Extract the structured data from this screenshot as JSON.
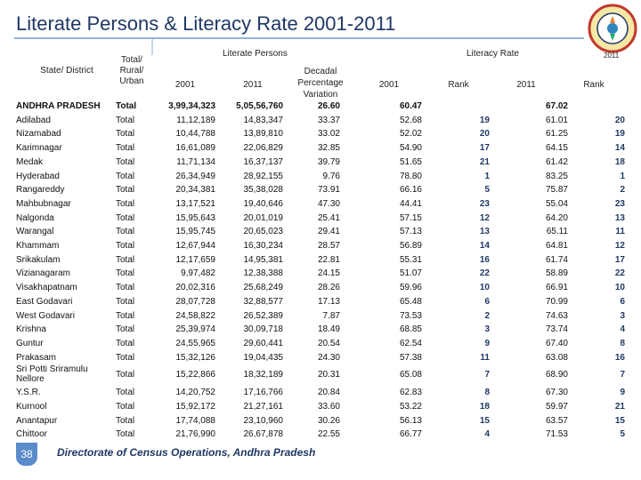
{
  "title": "Literate Persons & Literacy Rate 2001-2011",
  "seal": {
    "year": "2011",
    "colors": {
      "ring": "#c0392b",
      "inner": "#f6e7a6"
    }
  },
  "header": {
    "state": "State/ District",
    "area": [
      "Total/",
      "Rural/",
      "Urban"
    ],
    "literate_persons": "Literate Persons",
    "literacy_rate": "Literacy Rate",
    "lp_2001": "2001",
    "lp_2011": "2011",
    "decadal": [
      "Decadal",
      "Percentage",
      "Variation"
    ],
    "lr_2001": "2001",
    "rank_2001": "Rank",
    "lr_2011": "2011",
    "rank_2011": "Rank"
  },
  "rows": [
    {
      "state": "ANDHRA PRADESH",
      "area": "Total",
      "lp2001": "3,99,34,323",
      "lp2011": "5,05,56,760",
      "dec": "26.60",
      "lr2001": "60.47",
      "rank2001": "",
      "lr2011": "67.02",
      "rank2011": ""
    },
    {
      "state": "Adilabad",
      "area": "Total",
      "lp2001": "11,12,189",
      "lp2011": "14,83,347",
      "dec": "33.37",
      "lr2001": "52.68",
      "rank2001": "19",
      "lr2011": "61.01",
      "rank2011": "20"
    },
    {
      "state": "Nizamabad",
      "area": "Total",
      "lp2001": "10,44,788",
      "lp2011": "13,89,810",
      "dec": "33.02",
      "lr2001": "52.02",
      "rank2001": "20",
      "lr2011": "61.25",
      "rank2011": "19"
    },
    {
      "state": "Karimnagar",
      "area": "Total",
      "lp2001": "16,61,089",
      "lp2011": "22,06,829",
      "dec": "32.85",
      "lr2001": "54.90",
      "rank2001": "17",
      "lr2011": "64.15",
      "rank2011": "14"
    },
    {
      "state": "Medak",
      "area": "Total",
      "lp2001": "11,71,134",
      "lp2011": "16,37,137",
      "dec": "39.79",
      "lr2001": "51.65",
      "rank2001": "21",
      "lr2011": "61.42",
      "rank2011": "18"
    },
    {
      "state": "Hyderabad",
      "area": "Total",
      "lp2001": "26,34,949",
      "lp2011": "28,92,155",
      "dec": "9.76",
      "lr2001": "78.80",
      "rank2001": "1",
      "lr2011": "83.25",
      "rank2011": "1"
    },
    {
      "state": "Rangareddy",
      "area": "Total",
      "lp2001": "20,34,381",
      "lp2011": "35,38,028",
      "dec": "73.91",
      "lr2001": "66.16",
      "rank2001": "5",
      "lr2011": "75.87",
      "rank2011": "2"
    },
    {
      "state": "Mahbubnagar",
      "area": "Total",
      "lp2001": "13,17,521",
      "lp2011": "19,40,646",
      "dec": "47.30",
      "lr2001": "44.41",
      "rank2001": "23",
      "lr2011": "55.04",
      "rank2011": "23"
    },
    {
      "state": "Nalgonda",
      "area": "Total",
      "lp2001": "15,95,643",
      "lp2011": "20,01,019",
      "dec": "25.41",
      "lr2001": "57.15",
      "rank2001": "12",
      "lr2011": "64.20",
      "rank2011": "13"
    },
    {
      "state": "Warangal",
      "area": "Total",
      "lp2001": "15,95,745",
      "lp2011": "20,65,023",
      "dec": "29.41",
      "lr2001": "57.13",
      "rank2001": "13",
      "lr2011": "65.11",
      "rank2011": "11"
    },
    {
      "state": "Khammam",
      "area": "Total",
      "lp2001": "12,67,944",
      "lp2011": "16,30,234",
      "dec": "28.57",
      "lr2001": "56.89",
      "rank2001": "14",
      "lr2011": "64.81",
      "rank2011": "12"
    },
    {
      "state": "Srikakulam",
      "area": "Total",
      "lp2001": "12,17,659",
      "lp2011": "14,95,381",
      "dec": "22.81",
      "lr2001": "55.31",
      "rank2001": "16",
      "lr2011": "61.74",
      "rank2011": "17"
    },
    {
      "state": "Vizianagaram",
      "area": "Total",
      "lp2001": "9,97,482",
      "lp2011": "12,38,388",
      "dec": "24.15",
      "lr2001": "51.07",
      "rank2001": "22",
      "lr2011": "58.89",
      "rank2011": "22"
    },
    {
      "state": "Visakhapatnam",
      "area": "Total",
      "lp2001": "20,02,316",
      "lp2011": "25,68,249",
      "dec": "28.26",
      "lr2001": "59.96",
      "rank2001": "10",
      "lr2011": "66.91",
      "rank2011": "10"
    },
    {
      "state": "East Godavari",
      "area": "Total",
      "lp2001": "28,07,728",
      "lp2011": "32,88,577",
      "dec": "17.13",
      "lr2001": "65.48",
      "rank2001": "6",
      "lr2011": "70.99",
      "rank2011": "6"
    },
    {
      "state": "West Godavari",
      "area": "Total",
      "lp2001": "24,58,822",
      "lp2011": "26,52,389",
      "dec": "7.87",
      "lr2001": "73.53",
      "rank2001": "2",
      "lr2011": "74.63",
      "rank2011": "3"
    },
    {
      "state": "Krishna",
      "area": "Total",
      "lp2001": "25,39,974",
      "lp2011": "30,09,718",
      "dec": "18.49",
      "lr2001": "68.85",
      "rank2001": "3",
      "lr2011": "73.74",
      "rank2011": "4"
    },
    {
      "state": "Guntur",
      "area": "Total",
      "lp2001": "24,55,965",
      "lp2011": "29,60,441",
      "dec": "20.54",
      "lr2001": "62.54",
      "rank2001": "9",
      "lr2011": "67.40",
      "rank2011": "8"
    },
    {
      "state": "Prakasam",
      "area": "Total",
      "lp2001": "15,32,126",
      "lp2011": "19,04,435",
      "dec": "24.30",
      "lr2001": "57.38",
      "rank2001": "11",
      "lr2011": "63.08",
      "rank2011": "16"
    },
    {
      "state": "Sri Potti Sriramulu Nellore",
      "area": "Total",
      "lp2001": "15,22,866",
      "lp2011": "18,32,189",
      "dec": "20.31",
      "lr2001": "65.08",
      "rank2001": "7",
      "lr2011": "68.90",
      "rank2011": "7"
    },
    {
      "state": "Y.S.R.",
      "area": "Total",
      "lp2001": "14,20,752",
      "lp2011": "17,16,766",
      "dec": "20.84",
      "lr2001": "62.83",
      "rank2001": "8",
      "lr2011": "67.30",
      "rank2011": "9"
    },
    {
      "state": "Kurnool",
      "area": "Total",
      "lp2001": "15,92,172",
      "lp2011": "21,27,161",
      "dec": "33.60",
      "lr2001": "53.22",
      "rank2001": "18",
      "lr2011": "59.97",
      "rank2011": "21"
    },
    {
      "state": "Anantapur",
      "area": "Total",
      "lp2001": "17,74,088",
      "lp2011": "23,10,960",
      "dec": "30.26",
      "lr2001": "56.13",
      "rank2001": "15",
      "lr2011": "63.57",
      "rank2011": "15"
    },
    {
      "state": "Chittoor",
      "area": "Total",
      "lp2001": "21,76,990",
      "lp2011": "26,67,878",
      "dec": "22.55",
      "lr2001": "66.77",
      "rank2001": "4",
      "lr2011": "71.53",
      "rank2011": "5"
    }
  ],
  "page_number": "38",
  "footer": "Directorate of Census Operations, Andhra Pradesh"
}
